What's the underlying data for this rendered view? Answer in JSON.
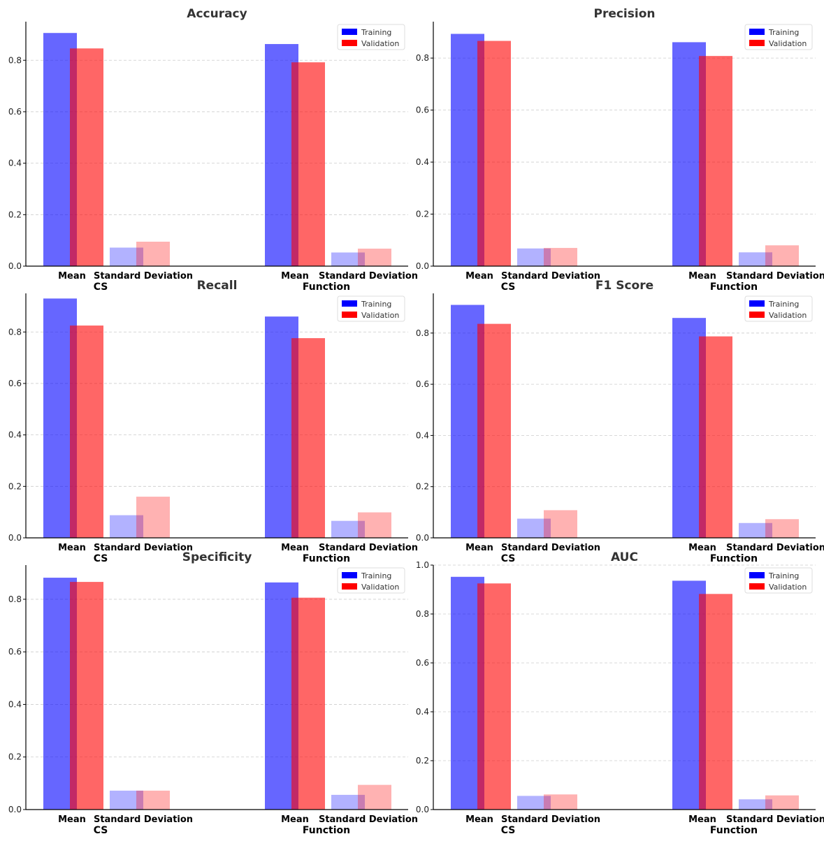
{
  "colors": {
    "training": "#0000ff",
    "validation": "#ff0000",
    "grid": "#cccccc",
    "axis": "#000000"
  },
  "chart_data": [
    {
      "type": "bar",
      "title": "Accuracy",
      "groups": [
        "CS",
        "Function"
      ],
      "categories": [
        "Mean",
        "Standard Deviation"
      ],
      "series": [
        {
          "name": "Training",
          "values": {
            "CS": [
              0.906,
              0.072
            ],
            "Function": [
              0.863,
              0.053
            ]
          }
        },
        {
          "name": "Validation",
          "values": {
            "CS": [
              0.846,
              0.095
            ],
            "Function": [
              0.792,
              0.068
            ]
          }
        }
      ],
      "ylim": [
        0,
        0.95
      ],
      "yticks": [
        "0.0",
        "0.2",
        "0.4",
        "0.6",
        "0.8"
      ],
      "legend": [
        "Training",
        "Validation"
      ],
      "legend_position": "top-right",
      "grid": "y-dashed"
    },
    {
      "type": "bar",
      "title": "Precision",
      "groups": [
        "CS",
        "Function"
      ],
      "categories": [
        "Mean",
        "Standard Deviation"
      ],
      "series": [
        {
          "name": "Training",
          "values": {
            "CS": [
              0.893,
              0.068
            ],
            "Function": [
              0.861,
              0.053
            ]
          }
        },
        {
          "name": "Validation",
          "values": {
            "CS": [
              0.866,
              0.07
            ],
            "Function": [
              0.808,
              0.08
            ]
          }
        }
      ],
      "ylim": [
        0,
        0.94
      ],
      "yticks": [
        "0.0",
        "0.2",
        "0.4",
        "0.6",
        "0.8"
      ],
      "legend": [
        "Training",
        "Validation"
      ],
      "legend_position": "top-right",
      "grid": "y-dashed"
    },
    {
      "type": "bar",
      "title": "Recall",
      "groups": [
        "CS",
        "Function"
      ],
      "categories": [
        "Mean",
        "Standard Deviation"
      ],
      "series": [
        {
          "name": "Training",
          "values": {
            "CS": [
              0.93,
              0.088
            ],
            "Function": [
              0.86,
              0.066
            ]
          }
        },
        {
          "name": "Validation",
          "values": {
            "CS": [
              0.825,
              0.16
            ],
            "Function": [
              0.776,
              0.099
            ]
          }
        }
      ],
      "ylim": [
        0,
        0.95
      ],
      "yticks": [
        "0.0",
        "0.2",
        "0.4",
        "0.6",
        "0.8"
      ],
      "legend": [
        "Training",
        "Validation"
      ],
      "legend_position": "top-right",
      "grid": "y-dashed"
    },
    {
      "type": "bar",
      "title": "F1 Score",
      "groups": [
        "CS",
        "Function"
      ],
      "categories": [
        "Mean",
        "Standard Deviation"
      ],
      "series": [
        {
          "name": "Training",
          "values": {
            "CS": [
              0.91,
              0.075
            ],
            "Function": [
              0.859,
              0.058
            ]
          }
        },
        {
          "name": "Validation",
          "values": {
            "CS": [
              0.836,
              0.108
            ],
            "Function": [
              0.787,
              0.073
            ]
          }
        }
      ],
      "ylim": [
        0,
        0.955
      ],
      "yticks": [
        "0.0",
        "0.2",
        "0.4",
        "0.6",
        "0.8"
      ],
      "legend": [
        "Training",
        "Validation"
      ],
      "legend_position": "top-right",
      "grid": "y-dashed"
    },
    {
      "type": "bar",
      "title": "Specificity",
      "groups": [
        "CS",
        "Function"
      ],
      "categories": [
        "Mean",
        "Standard Deviation"
      ],
      "series": [
        {
          "name": "Training",
          "values": {
            "CS": [
              0.882,
              0.072
            ],
            "Function": [
              0.864,
              0.056
            ]
          }
        },
        {
          "name": "Validation",
          "values": {
            "CS": [
              0.866,
              0.072
            ],
            "Function": [
              0.806,
              0.094
            ]
          }
        }
      ],
      "ylim": [
        0,
        0.93
      ],
      "yticks": [
        "0.0",
        "0.2",
        "0.4",
        "0.6",
        "0.8"
      ],
      "legend": [
        "Training",
        "Validation"
      ],
      "legend_position": "top-right",
      "grid": "y-dashed"
    },
    {
      "type": "bar",
      "title": "AUC",
      "groups": [
        "CS",
        "Function"
      ],
      "categories": [
        "Mean",
        "Standard Deviation"
      ],
      "series": [
        {
          "name": "Training",
          "values": {
            "CS": [
              0.952,
              0.056
            ],
            "Function": [
              0.936,
              0.042
            ]
          }
        },
        {
          "name": "Validation",
          "values": {
            "CS": [
              0.925,
              0.062
            ],
            "Function": [
              0.882,
              0.058
            ]
          }
        }
      ],
      "ylim": [
        0,
        1.0
      ],
      "yticks": [
        "0.0",
        "0.2",
        "0.4",
        "0.6",
        "0.8",
        "1.0"
      ],
      "legend": [
        "Training",
        "Validation"
      ],
      "legend_position": "top-right",
      "grid": "y-dashed"
    }
  ]
}
